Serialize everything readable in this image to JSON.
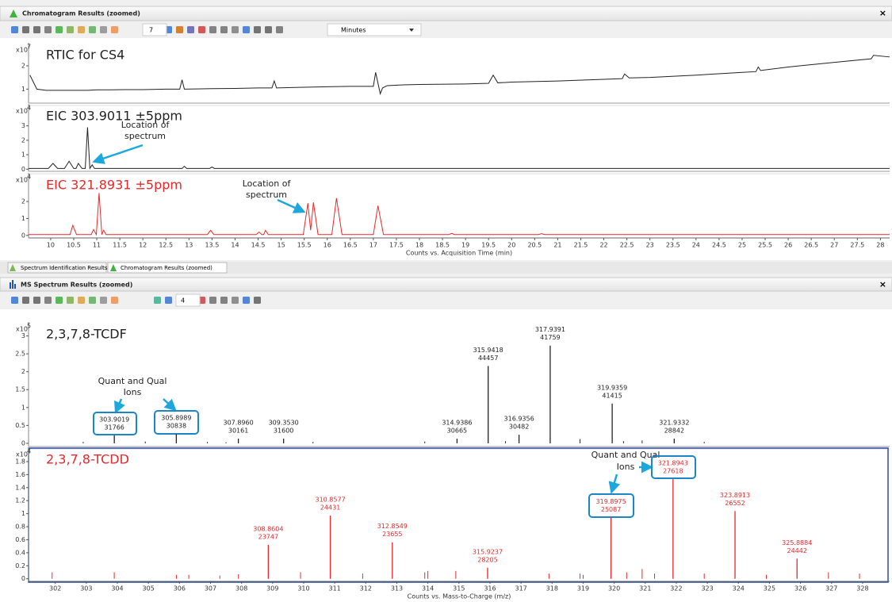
{
  "chromatogram_window": {
    "title": "Chromatogram Results (zoomed)",
    "toolbar": {
      "count": 7,
      "time_units": "Minutes"
    },
    "x_label": "Counts vs. Acquisition Time (min)",
    "xlim": [
      9.52,
      28.2
    ],
    "xticks": [
      10,
      10.5,
      11,
      11.5,
      12,
      12.5,
      13,
      13.5,
      14,
      14.5,
      15,
      15.5,
      16,
      16.5,
      17,
      17.5,
      18,
      18.5,
      19,
      19.5,
      20,
      20.5,
      21,
      21.5,
      22,
      22.5,
      23,
      23.5,
      24,
      24.5,
      25,
      25.5,
      26,
      26.5,
      27,
      27.5,
      28
    ],
    "panels": [
      {
        "type": "line",
        "title": "RTIC for CS4",
        "scale": "x10",
        "scale_exp": 7,
        "color": "#222222",
        "ylim": [
          0.4,
          2.85
        ],
        "yticks": [
          1,
          2
        ],
        "x": [
          9.55,
          9.7,
          9.9,
          10.1,
          10.5,
          10.8,
          11.0,
          11.3,
          11.6,
          12.0,
          12.5,
          12.8,
          12.85,
          12.9,
          13.5,
          14.0,
          14.5,
          14.8,
          14.85,
          14.9,
          15.5,
          16.0,
          16.5,
          17.0,
          17.05,
          17.15,
          17.2,
          17.3,
          17.6,
          18.0,
          19.0,
          19.5,
          19.6,
          19.7,
          20.0,
          21.0,
          22.0,
          22.4,
          22.45,
          22.55,
          23.0,
          24.0,
          25.0,
          25.3,
          25.35,
          25.4,
          26.0,
          27.0,
          27.8,
          27.85,
          28.2
        ],
        "values": [
          1.6,
          1.0,
          0.95,
          0.95,
          0.95,
          0.95,
          0.97,
          0.97,
          0.98,
          0.98,
          1.0,
          1.0,
          1.4,
          1.0,
          1.02,
          1.03,
          1.05,
          1.05,
          1.35,
          1.05,
          1.08,
          1.1,
          1.12,
          1.12,
          1.72,
          0.8,
          1.05,
          1.15,
          1.18,
          1.2,
          1.22,
          1.25,
          1.6,
          1.27,
          1.3,
          1.35,
          1.42,
          1.45,
          1.65,
          1.48,
          1.5,
          1.6,
          1.72,
          1.75,
          1.95,
          1.8,
          1.95,
          2.15,
          2.3,
          2.45,
          2.38
        ]
      },
      {
        "type": "line",
        "title": "EIC 303.9011 ±5ppm",
        "scale": "x10",
        "scale_exp": 4,
        "color": "#222222",
        "ylim": [
          -0.15,
          4.3
        ],
        "yticks": [
          0,
          1,
          2,
          3
        ],
        "x": [
          9.52,
          9.95,
          10.05,
          10.15,
          10.3,
          10.4,
          10.5,
          10.55,
          10.6,
          10.68,
          10.75,
          10.8,
          10.85,
          10.9,
          10.95,
          11.05,
          12.85,
          12.9,
          12.95,
          13.45,
          13.5,
          13.55,
          28.2
        ],
        "values": [
          0.05,
          0.05,
          0.4,
          0.05,
          0.05,
          0.55,
          0.05,
          0.05,
          0.4,
          0.05,
          0.05,
          2.9,
          0.05,
          0.3,
          0.05,
          0.05,
          0.05,
          0.2,
          0.05,
          0.05,
          0.15,
          0.05,
          0.05
        ],
        "annotation": [
          "Location of",
          "spectrum"
        ]
      },
      {
        "type": "line",
        "title": "EIC 321.8931 ±5ppm",
        "scale": "x10",
        "scale_exp": 4,
        "color": "#e8282a",
        "ylim": [
          -0.15,
          3.5
        ],
        "yticks": [
          0,
          1,
          2
        ],
        "x": [
          9.52,
          10.42,
          10.48,
          10.56,
          10.88,
          10.93,
          10.99,
          11.05,
          11.11,
          11.15,
          11.2,
          13.4,
          13.47,
          13.54,
          14.46,
          14.52,
          14.58,
          14.62,
          14.66,
          14.72,
          15.48,
          15.58,
          15.64,
          15.7,
          15.8,
          16.1,
          16.2,
          16.32,
          17.0,
          17.1,
          17.22,
          18.64,
          18.7,
          18.76,
          20.58,
          20.65,
          20.72,
          28.2
        ],
        "values": [
          0.05,
          0.05,
          0.6,
          0.05,
          0.05,
          0.35,
          0.05,
          2.5,
          0.05,
          0.3,
          0.05,
          0.05,
          0.3,
          0.05,
          0.05,
          0.2,
          0.05,
          0.05,
          0.3,
          0.05,
          0.05,
          1.9,
          0.3,
          1.95,
          0.05,
          0.05,
          2.2,
          0.05,
          0.05,
          1.75,
          0.05,
          0.05,
          0.12,
          0.05,
          0.05,
          0.1,
          0.05,
          0.05
        ],
        "annotation": [
          "Location of",
          "spectrum"
        ]
      }
    ]
  },
  "tabs": [
    "Spectrum Identification Results",
    "Chromatogram Results (zoomed)"
  ],
  "spectrum_window": {
    "title": "MS Spectrum Results (zoomed)",
    "toolbar": {
      "count": 4
    },
    "x_label": "Counts vs. Mass-to-Charge (m/z)",
    "xlim": [
      301.14,
      328.87
    ],
    "xticks": [
      302,
      303,
      304,
      305,
      306,
      307,
      308,
      309,
      310,
      311,
      312,
      313,
      314,
      315,
      316,
      317,
      318,
      319,
      320,
      321,
      322,
      323,
      324,
      325,
      326,
      327,
      328
    ],
    "panels": [
      {
        "type": "stick",
        "title": "2,3,7,8-TCDF",
        "scale": "x10",
        "scale_exp": 5,
        "color": "#222222",
        "ylim": [
          -0.09,
          3.3
        ],
        "yticks": [
          0,
          0.5,
          1,
          1.5,
          2,
          2.5,
          3
        ],
        "peaks": {
          "x": [
            303.9019,
            305.8989,
            307.896,
            309.353,
            314.9386,
            315.9418,
            316.9356,
            317.9391,
            319.9359,
            321.9332
          ],
          "x_labels": [
            "303.9019",
            "305.8989",
            "307.8960",
            "309.3530",
            "314.9386",
            "315.9418",
            "316.9356",
            "317.9391",
            "319.9359",
            "321.9332"
          ],
          "values": [
            0.22,
            0.26,
            0.13,
            0.13,
            0.13,
            2.16,
            0.24,
            2.73,
            1.11,
            0.13
          ],
          "counts": [
            31766,
            30838,
            30161,
            31600,
            30665,
            44457,
            30482,
            41759,
            41415,
            28842
          ]
        },
        "minor_peaks": {
          "x": [
            302.9,
            304.9,
            306.9,
            307.5,
            310.3,
            313.9,
            316.5,
            318.9,
            320.3,
            320.9,
            322.9
          ],
          "values": [
            0.04,
            0.05,
            0.04,
            0.03,
            0.04,
            0.05,
            0.06,
            0.12,
            0.06,
            0.08,
            0.04
          ]
        },
        "annotation": [
          "Quant and Qual",
          "Ions"
        ]
      },
      {
        "type": "stick",
        "title": "2,3,7,8-TCDD",
        "scale": "x10",
        "scale_exp": 4,
        "color": "#e8282a",
        "ylim": [
          -0.04,
          1.97
        ],
        "yticks": [
          0,
          0.2,
          0.4,
          0.6,
          0.8,
          1,
          1.2,
          1.4,
          1.6,
          1.8
        ],
        "peaks": {
          "x": [
            308.8604,
            310.8577,
            312.8549,
            315.9237,
            319.8975,
            321.8943,
            323.8913,
            325.8884
          ],
          "x_labels": [
            "308.8604",
            "310.8577",
            "312.8549",
            "315.9237",
            "319.8975",
            "321.8943",
            "323.8913",
            "325.8884"
          ],
          "values": [
            0.52,
            0.97,
            0.56,
            0.17,
            0.94,
            1.53,
            1.04,
            0.31
          ],
          "counts": [
            23747,
            24431,
            23655,
            28205,
            25087,
            27618,
            26552,
            24442
          ]
        },
        "minor_peaks": {
          "x": [
            301.9,
            303.9,
            305.9,
            306.3,
            307.3,
            307.9,
            309.9,
            311.9,
            313.9,
            314.0,
            314.9,
            317.9,
            318.9,
            319.0,
            320.4,
            320.9,
            321.3,
            322.9,
            324.9,
            326.9,
            327.9
          ],
          "values": [
            0.1,
            0.1,
            0.06,
            0.06,
            0.05,
            0.07,
            0.1,
            0.08,
            0.1,
            0.12,
            0.12,
            0.08,
            0.08,
            0.06,
            0.1,
            0.15,
            0.08,
            0.08,
            0.06,
            0.1,
            0.08
          ]
        },
        "annotation": [
          "Quant and Qual",
          "Ions"
        ]
      }
    ]
  }
}
